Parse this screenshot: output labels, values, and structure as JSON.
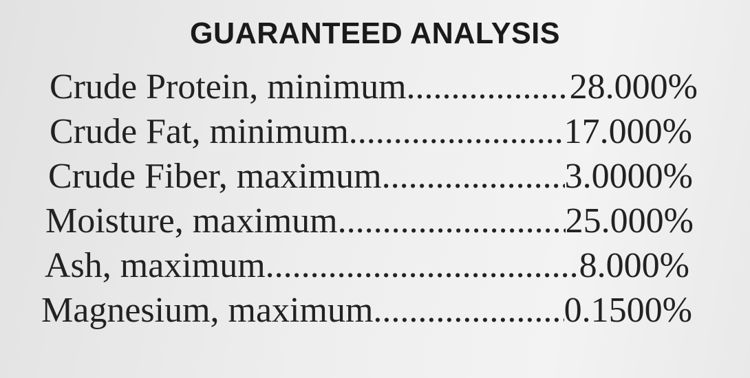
{
  "title": "GUARANTEED ANALYSIS",
  "rows": [
    {
      "label": "Crude Protein, minimum",
      "value": "28.000%"
    },
    {
      "label": "Crude Fat, minimum",
      "value": "17.000%"
    },
    {
      "label": "Crude Fiber, maximum",
      "value": "3.0000%"
    },
    {
      "label": "Moisture, maximum",
      "value": "25.000%"
    },
    {
      "label": "Ash, maximum",
      "value": "8.000%"
    },
    {
      "label": "Magnesium, maximum",
      "value": "0.1500%"
    }
  ]
}
